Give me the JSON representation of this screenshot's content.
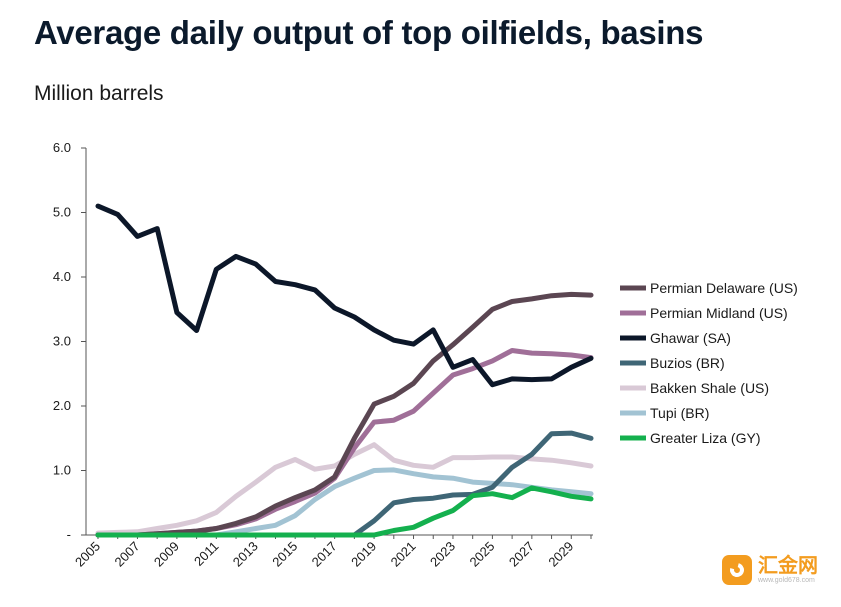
{
  "chart_data": {
    "type": "line",
    "title": "Average daily output of top oilfields, basins",
    "subtitle": "Million barrels",
    "xlabel": "",
    "ylabel": "",
    "x": [
      2005,
      2006,
      2007,
      2008,
      2009,
      2010,
      2011,
      2012,
      2013,
      2014,
      2015,
      2016,
      2017,
      2018,
      2019,
      2020,
      2021,
      2022,
      2023,
      2024,
      2025,
      2026,
      2027,
      2028,
      2029,
      2030
    ],
    "xticks": [
      "2005",
      "2007",
      "2009",
      "2011",
      "2013",
      "2015",
      "2017",
      "2019",
      "2021",
      "2023",
      "2025",
      "2027",
      "2029"
    ],
    "yticks": [
      "-",
      "1.0",
      "2.0",
      "3.0",
      "4.0",
      "5.0",
      "6.0"
    ],
    "ylim": [
      0,
      6
    ],
    "legend_position": "right",
    "series": [
      {
        "name": "Permian Delaware (US)",
        "color": "#5b4652",
        "values": [
          0.0,
          0.0,
          0.0,
          0.02,
          0.04,
          0.06,
          0.1,
          0.18,
          0.28,
          0.45,
          0.58,
          0.7,
          0.9,
          1.5,
          2.03,
          2.15,
          2.35,
          2.7,
          2.95,
          3.22,
          3.5,
          3.62,
          3.66,
          3.71,
          3.73,
          3.72
        ]
      },
      {
        "name": "Permian Midland (US)",
        "color": "#a06f98",
        "values": [
          0.0,
          0.0,
          0.0,
          0.02,
          0.04,
          0.06,
          0.1,
          0.16,
          0.25,
          0.4,
          0.52,
          0.65,
          0.88,
          1.35,
          1.75,
          1.78,
          1.92,
          2.2,
          2.48,
          2.58,
          2.7,
          2.86,
          2.82,
          2.81,
          2.79,
          2.75
        ]
      },
      {
        "name": "Ghawar (SA)",
        "color": "#0c1729",
        "values": [
          5.1,
          4.97,
          4.63,
          4.75,
          3.45,
          3.17,
          4.12,
          4.32,
          4.2,
          3.93,
          3.88,
          3.8,
          3.52,
          3.38,
          3.18,
          3.02,
          2.96,
          3.18,
          2.6,
          2.72,
          2.33,
          2.42,
          2.41,
          2.42,
          2.6,
          2.74
        ]
      },
      {
        "name": "Buzios (BR)",
        "color": "#3f6676",
        "values": [
          0.0,
          0.0,
          0.0,
          0.0,
          0.0,
          0.0,
          0.0,
          0.0,
          0.0,
          0.0,
          0.0,
          0.0,
          0.0,
          0.0,
          0.22,
          0.5,
          0.55,
          0.57,
          0.62,
          0.63,
          0.74,
          1.05,
          1.25,
          1.57,
          1.58,
          1.5
        ]
      },
      {
        "name": "Bakken Shale (US)",
        "color": "#d9c9d6",
        "values": [
          0.03,
          0.04,
          0.05,
          0.1,
          0.15,
          0.22,
          0.35,
          0.6,
          0.82,
          1.05,
          1.17,
          1.02,
          1.07,
          1.25,
          1.4,
          1.16,
          1.08,
          1.05,
          1.2,
          1.2,
          1.21,
          1.21,
          1.18,
          1.16,
          1.12,
          1.07
        ]
      },
      {
        "name": "Tupi (BR)",
        "color": "#a2c3d3",
        "values": [
          0.0,
          0.0,
          0.0,
          0.0,
          0.0,
          0.0,
          0.0,
          0.05,
          0.1,
          0.15,
          0.3,
          0.55,
          0.75,
          0.88,
          1.0,
          1.01,
          0.95,
          0.9,
          0.88,
          0.82,
          0.8,
          0.78,
          0.74,
          0.7,
          0.67,
          0.64
        ]
      },
      {
        "name": "Greater Liza (GY)",
        "color": "#14b04e",
        "values": [
          0.0,
          0.0,
          0.0,
          0.0,
          0.0,
          0.0,
          0.0,
          0.0,
          0.0,
          0.0,
          0.0,
          0.0,
          0.0,
          0.0,
          0.0,
          0.07,
          0.12,
          0.26,
          0.38,
          0.61,
          0.64,
          0.58,
          0.73,
          0.67,
          0.6,
          0.56
        ]
      }
    ]
  },
  "watermark": {
    "name": "汇金网",
    "url": "www.gold678.com"
  }
}
